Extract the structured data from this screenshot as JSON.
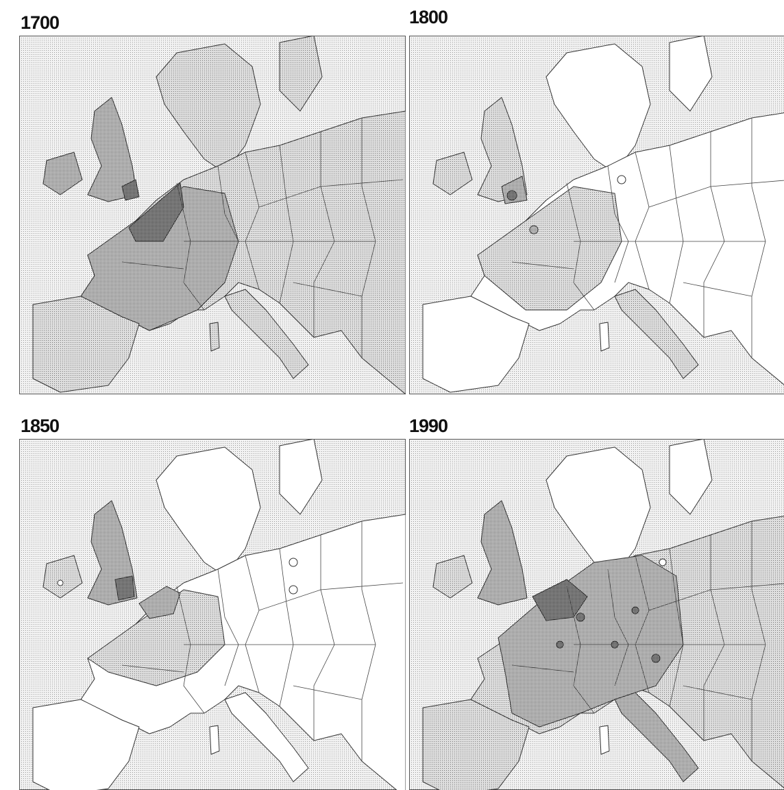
{
  "panels": [
    {
      "title": "1700"
    },
    {
      "title": "1800"
    },
    {
      "title": "1850"
    },
    {
      "title": "1990"
    }
  ]
}
